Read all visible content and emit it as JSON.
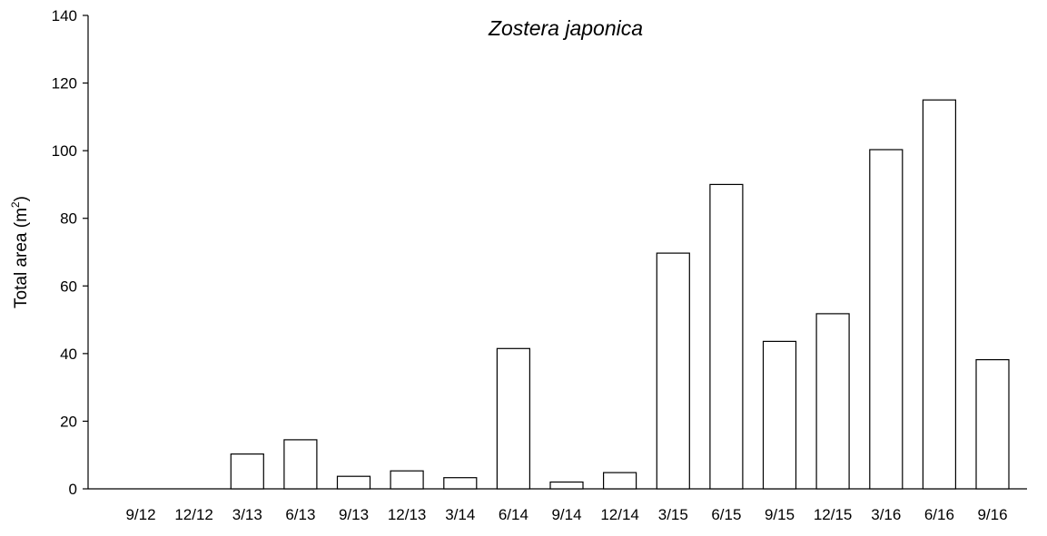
{
  "chart_data": {
    "type": "bar",
    "title": "Zostera japonica",
    "xlabel": "",
    "ylabel": "Total area (m",
    "ylabel_superscript": "2",
    "ylabel_suffix": ")",
    "categories": [
      "9/12",
      "12/12",
      "3/13",
      "6/13",
      "9/13",
      "12/13",
      "3/14",
      "6/14",
      "9/14",
      "12/14",
      "3/15",
      "6/15",
      "9/15",
      "12/15",
      "3/16",
      "6/16",
      "9/16"
    ],
    "values": [
      0,
      0,
      10.3,
      14.5,
      3.7,
      5.3,
      3.3,
      41.5,
      2.0,
      4.8,
      69.7,
      90.0,
      43.6,
      51.8,
      100.3,
      115.0,
      38.2
    ],
    "ylim": [
      0,
      140
    ],
    "yticks": [
      0,
      20,
      40,
      60,
      80,
      100,
      120,
      140
    ],
    "grid": false,
    "legend": "none",
    "colors": {
      "bar_fill": "#ffffff",
      "bar_stroke": "#000000",
      "axis": "#000000",
      "text": "#000000"
    }
  }
}
